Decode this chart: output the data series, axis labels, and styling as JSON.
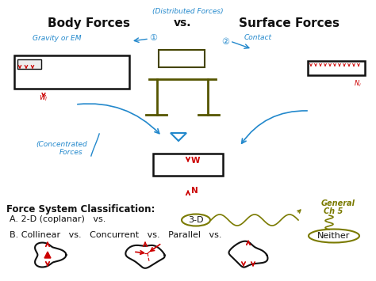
{
  "bg_color": "#ffffff",
  "blue": "#2288cc",
  "olive": "#7a7a00",
  "red": "#cc0000",
  "black": "#111111",
  "title_distributed": "(Distributed Forces)",
  "title_body": "Body Forces",
  "title_vs_top": "vs.",
  "title_surface": "Surface Forces",
  "text_gravity": "Gravity or EM",
  "text_contact": "Contact",
  "text_concentrated": "(Concentrated\n   Forces",
  "text_general": "General\nCh 5",
  "text_fsc": "Force System Classification:",
  "text_a": "A. 2-D (coplanar)   vs.   ",
  "text_3d": "3-D",
  "text_b": "B. Collinear   vs.   Concurrent   vs.   Parallel   vs.   ",
  "text_neither": "Neither"
}
